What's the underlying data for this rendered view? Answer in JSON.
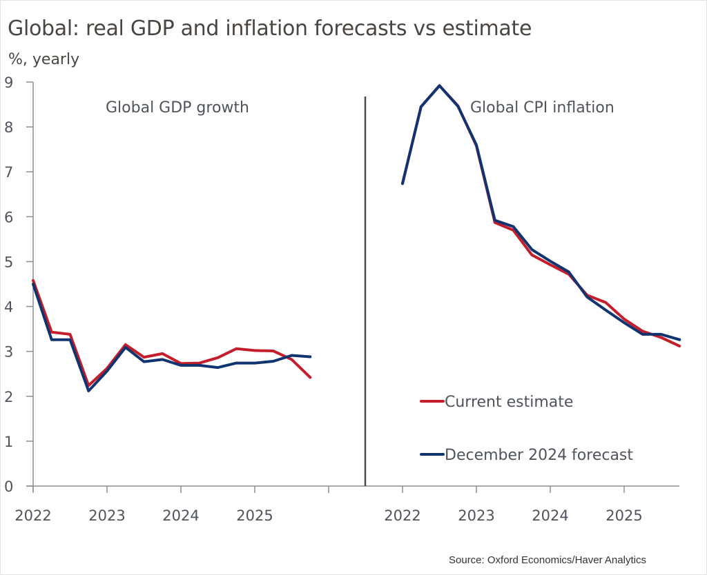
{
  "title": "Global: real GDP and inflation forecasts vs estimate",
  "source": "Source:  Oxford Economics/Haver Analytics",
  "colors": {
    "current": "#c41e2a",
    "forecast": "#0f3470",
    "axis": "#8a8d92",
    "divider": "#44474d"
  },
  "chart_data": [
    {
      "type": "line",
      "title": "Global GDP growth",
      "ylabel": "%, yearly",
      "ylim": [
        0,
        9
      ],
      "yticks": [
        0,
        1,
        2,
        3,
        4,
        5,
        6,
        7,
        8,
        9
      ],
      "xticks": [
        "2022",
        "2023",
        "2024",
        "2025"
      ],
      "x": [
        "2022Q1",
        "2022Q2",
        "2022Q3",
        "2022Q4",
        "2023Q1",
        "2023Q2",
        "2023Q3",
        "2023Q4",
        "2024Q1",
        "2024Q2",
        "2024Q3",
        "2024Q4",
        "2025Q1",
        "2025Q2",
        "2025Q3",
        "2025Q4"
      ],
      "series": [
        {
          "name": "Current estimate",
          "color_key": "current",
          "values": [
            4.58,
            3.43,
            3.38,
            2.24,
            2.62,
            3.15,
            2.87,
            2.95,
            2.73,
            2.74,
            2.86,
            3.06,
            3.02,
            3.01,
            2.82,
            2.42
          ]
        },
        {
          "name": "December 2024 forecast",
          "color_key": "forecast",
          "values": [
            4.5,
            3.26,
            3.26,
            2.12,
            2.56,
            3.09,
            2.77,
            2.82,
            2.69,
            2.69,
            2.64,
            2.74,
            2.74,
            2.78,
            2.91,
            2.88
          ]
        }
      ]
    },
    {
      "type": "line",
      "title": "Global CPI inflation",
      "ylim": [
        0,
        9
      ],
      "xticks": [
        "2022",
        "2023",
        "2024",
        "2025"
      ],
      "x": [
        "2022Q1",
        "2022Q2",
        "2022Q3",
        "2022Q4",
        "2023Q1",
        "2023Q2",
        "2023Q3",
        "2023Q4",
        "2024Q1",
        "2024Q2",
        "2024Q3",
        "2024Q4",
        "2025Q1",
        "2025Q2",
        "2025Q3",
        "2025Q4"
      ],
      "series": [
        {
          "name": "Current estimate",
          "color_key": "current",
          "values": [
            6.74,
            8.45,
            8.92,
            8.47,
            7.58,
            5.87,
            5.7,
            5.15,
            4.93,
            4.72,
            4.25,
            4.09,
            3.72,
            3.45,
            3.31,
            3.12
          ]
        },
        {
          "name": "December 2024 forecast",
          "color_key": "forecast",
          "values": [
            6.74,
            8.45,
            8.92,
            8.46,
            7.6,
            5.92,
            5.78,
            5.27,
            5.01,
            4.77,
            4.21,
            3.92,
            3.64,
            3.38,
            3.38,
            3.26
          ]
        }
      ]
    }
  ],
  "legend": [
    {
      "label": "Current estimate",
      "color_key": "current"
    },
    {
      "label": "December 2024 forecast",
      "color_key": "forecast"
    }
  ],
  "legend_position": "bottom-right"
}
